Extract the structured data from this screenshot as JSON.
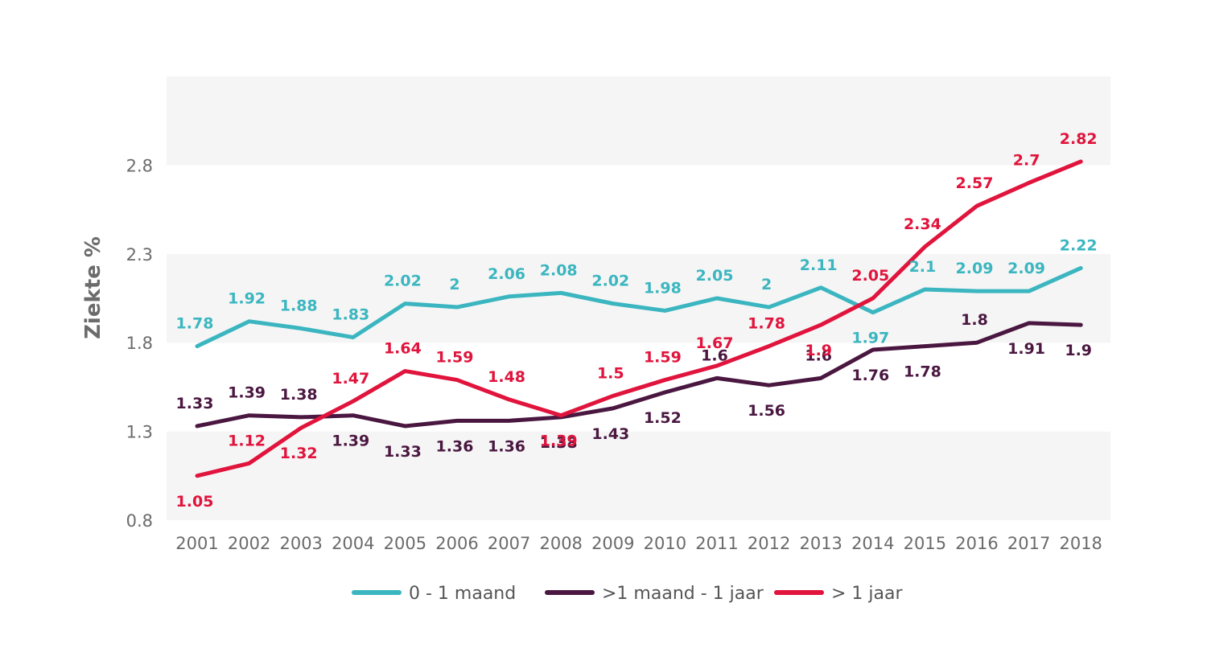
{
  "chart_data": {
    "type": "line",
    "title": "",
    "xlabel": "",
    "ylabel": "Ziekte %",
    "ylim": [
      0.8,
      3.3
    ],
    "yticks": [
      0.8,
      1.3,
      1.8,
      2.3,
      2.8
    ],
    "grid": "alternating bands",
    "legend_position": "bottom",
    "categories": [
      "2001",
      "2002",
      "2003",
      "2004",
      "2005",
      "2006",
      "2007",
      "2008",
      "2009",
      "2010",
      "2011",
      "2012",
      "2013",
      "2014",
      "2015",
      "2016",
      "2017",
      "2018"
    ],
    "series": [
      {
        "name": "0  -  1  maand",
        "color": "#3bb6c0",
        "values": [
          1.78,
          1.92,
          1.88,
          1.83,
          2.02,
          2,
          2.06,
          2.08,
          2.02,
          1.98,
          2.05,
          2,
          2.11,
          1.97,
          2.1,
          2.09,
          2.09,
          2.22
        ],
        "labels": [
          "1.78",
          "1.92",
          "1.88",
          "1.83",
          "2.02",
          "2",
          "2.06",
          "2.08",
          "2.02",
          "1.98",
          "2.05",
          "2",
          "2.11",
          "1.97",
          "2.1",
          "2.09",
          "2.09",
          "2.22"
        ]
      },
      {
        "name": ">1 maand - 1 jaar",
        "color": "#4a1740",
        "values": [
          1.33,
          1.39,
          1.38,
          1.39,
          1.33,
          1.36,
          1.36,
          1.38,
          1.43,
          1.52,
          1.6,
          1.56,
          1.6,
          1.76,
          1.78,
          1.8,
          1.91,
          1.9
        ],
        "labels": [
          "1.33",
          "1.39",
          "1.38",
          "1.39",
          "1.33",
          "1.36",
          "1.36",
          "1.38",
          "1.43",
          "1.52",
          "1.6",
          "1.56",
          "1.6",
          "1.76",
          "1.78",
          "1.8",
          "1.91",
          "1.9"
        ]
      },
      {
        "name": "> 1 jaar",
        "color": "#e0143c",
        "values": [
          1.05,
          1.12,
          1.32,
          1.47,
          1.64,
          1.59,
          1.48,
          1.39,
          1.5,
          1.59,
          1.67,
          1.78,
          1.9,
          2.05,
          2.34,
          2.57,
          2.7,
          2.82
        ],
        "labels": [
          "1.05",
          "1.12",
          "1.32",
          "1.47",
          "1.64",
          "1.59",
          "1.48",
          "1.39",
          "1.5",
          "1.59",
          "1.67",
          "1.78",
          "1.9",
          "2.05",
          "2.34",
          "2.57",
          "2.7",
          "2.82"
        ]
      }
    ]
  }
}
